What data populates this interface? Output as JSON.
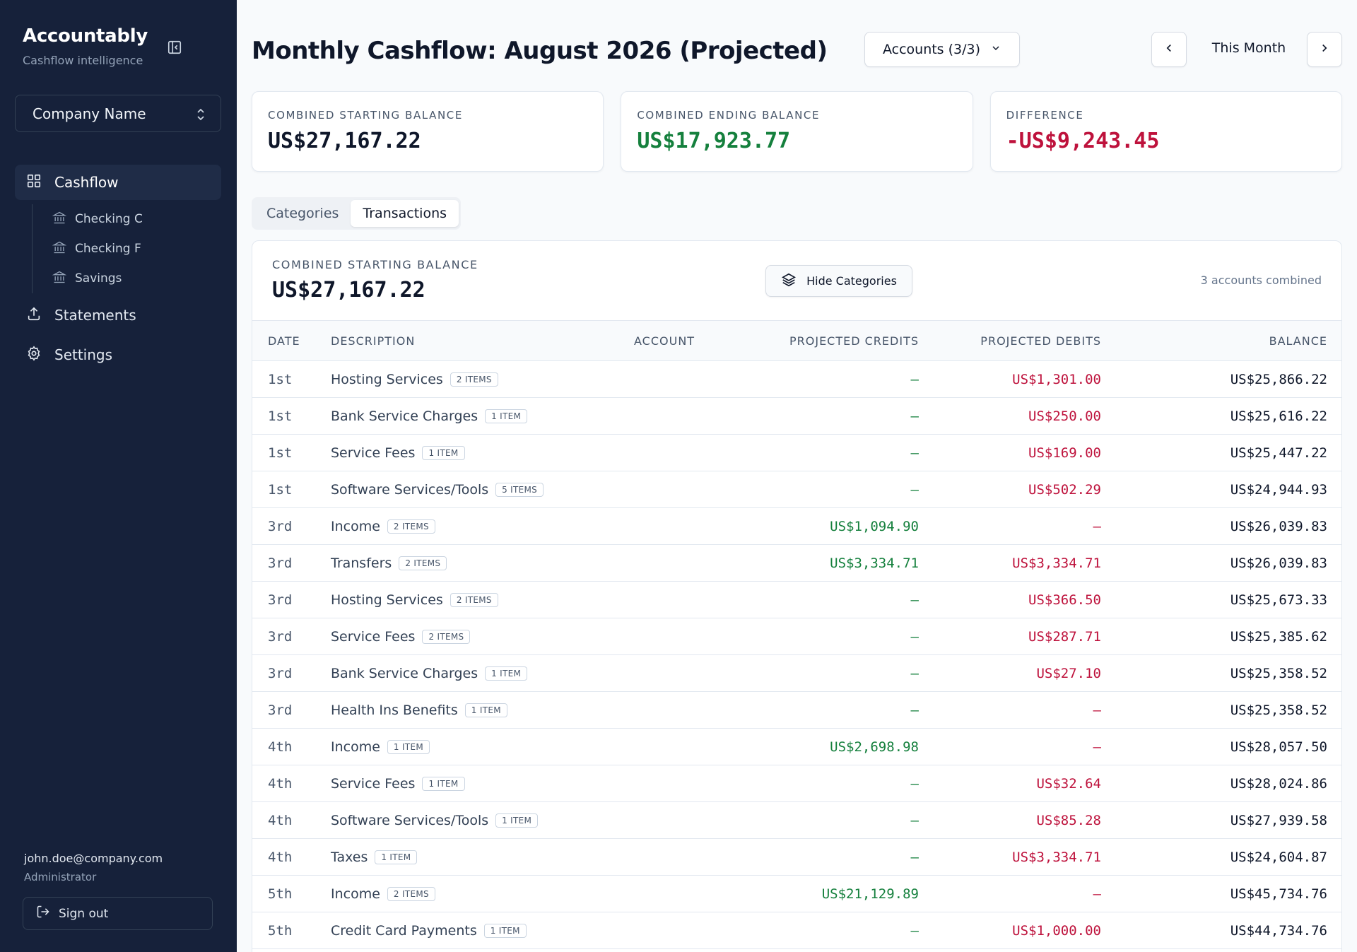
{
  "app": {
    "name": "Accountably",
    "subtitle": "Cashflow intelligence"
  },
  "sidebar": {
    "company": "Company Name",
    "nav": [
      {
        "label": "Cashflow",
        "icon": "grid-icon",
        "active": true
      },
      {
        "label": "Statements",
        "icon": "upload-icon"
      },
      {
        "label": "Settings",
        "icon": "gear-icon"
      }
    ],
    "accounts": [
      {
        "label": "Checking C",
        "icon": "bank-icon"
      },
      {
        "label": "Checking F",
        "icon": "bank-icon"
      },
      {
        "label": "Savings",
        "icon": "bank-icon"
      }
    ],
    "user": {
      "email": "john.doe@company.com",
      "role": "Administrator"
    },
    "signout_label": "Sign out"
  },
  "header": {
    "title": "Monthly Cashflow: August 2026 (Projected)",
    "accounts_label": "Accounts (3/3)",
    "period_label": "This Month"
  },
  "summary": [
    {
      "label": "COMBINED STARTING BALANCE",
      "value": "US$27,167.22",
      "tone": "neutral"
    },
    {
      "label": "COMBINED ENDING BALANCE",
      "value": "US$17,923.77",
      "tone": "pos"
    },
    {
      "label": "DIFFERENCE",
      "value": "-US$9,243.45",
      "tone": "neg"
    }
  ],
  "tabs": [
    {
      "label": "Categories",
      "active": false
    },
    {
      "label": "Transactions",
      "active": true
    }
  ],
  "table_card": {
    "label": "COMBINED STARTING BALANCE",
    "value": "US$27,167.22",
    "hide_label": "Hide Categories",
    "accounts_combined": "3 accounts combined"
  },
  "table": {
    "columns": [
      "DATE",
      "DESCRIPTION",
      "ACCOUNT",
      "PROJECTED CREDITS",
      "PROJECTED DEBITS",
      "BALANCE"
    ],
    "rows": [
      {
        "date": "1st",
        "desc": "Hosting Services",
        "items": "2 ITEMS",
        "account": "",
        "credit": "—",
        "debit": "US$1,301.00",
        "balance": "US$25,866.22"
      },
      {
        "date": "1st",
        "desc": "Bank Service Charges",
        "items": "1 ITEM",
        "account": "",
        "credit": "—",
        "debit": "US$250.00",
        "balance": "US$25,616.22"
      },
      {
        "date": "1st",
        "desc": "Service Fees",
        "items": "1 ITEM",
        "account": "",
        "credit": "—",
        "debit": "US$169.00",
        "balance": "US$25,447.22"
      },
      {
        "date": "1st",
        "desc": "Software Services/Tools",
        "items": "5 ITEMS",
        "account": "",
        "credit": "—",
        "debit": "US$502.29",
        "balance": "US$24,944.93"
      },
      {
        "date": "3rd",
        "desc": "Income",
        "items": "2 ITEMS",
        "account": "",
        "credit": "US$1,094.90",
        "debit": "—",
        "balance": "US$26,039.83"
      },
      {
        "date": "3rd",
        "desc": "Transfers",
        "items": "2 ITEMS",
        "account": "",
        "credit": "US$3,334.71",
        "debit": "US$3,334.71",
        "balance": "US$26,039.83"
      },
      {
        "date": "3rd",
        "desc": "Hosting Services",
        "items": "2 ITEMS",
        "account": "",
        "credit": "—",
        "debit": "US$366.50",
        "balance": "US$25,673.33"
      },
      {
        "date": "3rd",
        "desc": "Service Fees",
        "items": "2 ITEMS",
        "account": "",
        "credit": "—",
        "debit": "US$287.71",
        "balance": "US$25,385.62"
      },
      {
        "date": "3rd",
        "desc": "Bank Service Charges",
        "items": "1 ITEM",
        "account": "",
        "credit": "—",
        "debit": "US$27.10",
        "balance": "US$25,358.52"
      },
      {
        "date": "3rd",
        "desc": "Health Ins Benefits",
        "items": "1 ITEM",
        "account": "",
        "credit": "—",
        "debit": "—",
        "balance": "US$25,358.52"
      },
      {
        "date": "4th",
        "desc": "Income",
        "items": "1 ITEM",
        "account": "",
        "credit": "US$2,698.98",
        "debit": "—",
        "balance": "US$28,057.50"
      },
      {
        "date": "4th",
        "desc": "Service Fees",
        "items": "1 ITEM",
        "account": "",
        "credit": "—",
        "debit": "US$32.64",
        "balance": "US$28,024.86"
      },
      {
        "date": "4th",
        "desc": "Software Services/Tools",
        "items": "1 ITEM",
        "account": "",
        "credit": "—",
        "debit": "US$85.28",
        "balance": "US$27,939.58"
      },
      {
        "date": "4th",
        "desc": "Taxes",
        "items": "1 ITEM",
        "account": "",
        "credit": "—",
        "debit": "US$3,334.71",
        "balance": "US$24,604.87"
      },
      {
        "date": "5th",
        "desc": "Income",
        "items": "2 ITEMS",
        "account": "",
        "credit": "US$21,129.89",
        "debit": "—",
        "balance": "US$45,734.76"
      },
      {
        "date": "5th",
        "desc": "Credit Card Payments",
        "items": "1 ITEM",
        "account": "",
        "credit": "—",
        "debit": "US$1,000.00",
        "balance": "US$44,734.76"
      }
    ]
  },
  "colors": {
    "sidebar_bg": "#16213a",
    "credit": "#15803d",
    "debit": "#be123c"
  }
}
